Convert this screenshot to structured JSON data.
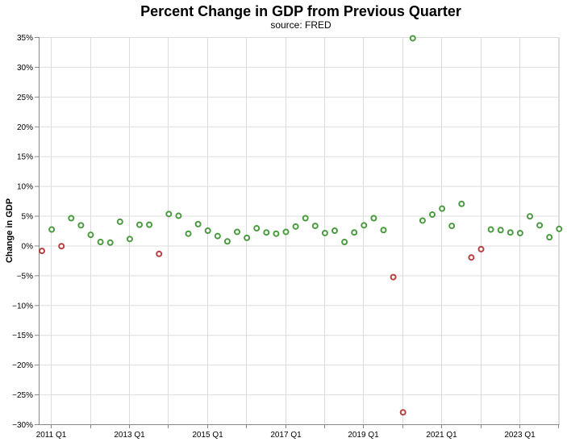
{
  "chart_data": {
    "type": "scatter",
    "title": "Percent Change in GDP from Previous Quarter",
    "subtitle": "source: FRED",
    "xlabel": "",
    "ylabel": "Change in GDP",
    "ylim": [
      -30,
      35
    ],
    "y_ticks": [
      35,
      30,
      25,
      20,
      15,
      10,
      5,
      0,
      -5,
      -10,
      -15,
      -20,
      -25,
      -30
    ],
    "y_tick_labels": [
      "35%",
      "30%",
      "25%",
      "20%",
      "15%",
      "10%",
      "5%",
      "0%",
      "−5%",
      "−10%",
      "−15%",
      "−20%",
      "−25%",
      "−30%"
    ],
    "x_tick_labels": [
      "2011 Q1",
      "2013 Q1",
      "2015 Q1",
      "2017 Q1",
      "2019 Q1",
      "2021 Q1",
      "2023 Q1"
    ],
    "positive_color": "#4a9a3f",
    "negative_color": "#b5403d",
    "points": [
      {
        "x": "2010 Q4",
        "y": -0.9
      },
      {
        "x": "2011 Q1",
        "y": 2.7
      },
      {
        "x": "2011 Q2",
        "y": -0.1
      },
      {
        "x": "2011 Q3",
        "y": 4.6
      },
      {
        "x": "2011 Q4",
        "y": 3.4
      },
      {
        "x": "2012 Q1",
        "y": 1.8
      },
      {
        "x": "2012 Q2",
        "y": 0.6
      },
      {
        "x": "2012 Q3",
        "y": 0.5
      },
      {
        "x": "2012 Q4",
        "y": 4.0
      },
      {
        "x": "2013 Q1",
        "y": 1.1
      },
      {
        "x": "2013 Q2",
        "y": 3.5
      },
      {
        "x": "2013 Q3",
        "y": 3.5
      },
      {
        "x": "2013 Q4",
        "y": -1.4
      },
      {
        "x": "2014 Q1",
        "y": 5.3
      },
      {
        "x": "2014 Q2",
        "y": 5.0
      },
      {
        "x": "2014 Q3",
        "y": 2.0
      },
      {
        "x": "2014 Q4",
        "y": 3.6
      },
      {
        "x": "2015 Q1",
        "y": 2.5
      },
      {
        "x": "2015 Q2",
        "y": 1.6
      },
      {
        "x": "2015 Q3",
        "y": 0.7
      },
      {
        "x": "2015 Q4",
        "y": 2.3
      },
      {
        "x": "2016 Q1",
        "y": 1.3
      },
      {
        "x": "2016 Q2",
        "y": 2.9
      },
      {
        "x": "2016 Q3",
        "y": 2.2
      },
      {
        "x": "2016 Q4",
        "y": 2.0
      },
      {
        "x": "2017 Q1",
        "y": 2.3
      },
      {
        "x": "2017 Q2",
        "y": 3.2
      },
      {
        "x": "2017 Q3",
        "y": 4.6
      },
      {
        "x": "2017 Q4",
        "y": 3.3
      },
      {
        "x": "2018 Q1",
        "y": 2.1
      },
      {
        "x": "2018 Q2",
        "y": 2.5
      },
      {
        "x": "2018 Q3",
        "y": 0.6
      },
      {
        "x": "2018 Q4",
        "y": 2.2
      },
      {
        "x": "2019 Q1",
        "y": 3.4
      },
      {
        "x": "2019 Q2",
        "y": 4.6
      },
      {
        "x": "2019 Q3",
        "y": 2.6
      },
      {
        "x": "2019 Q4",
        "y": -5.3
      },
      {
        "x": "2020 Q1",
        "y": -28.0
      },
      {
        "x": "2020 Q2",
        "y": 34.8
      },
      {
        "x": "2020 Q3",
        "y": 4.2
      },
      {
        "x": "2020 Q4",
        "y": 5.2
      },
      {
        "x": "2021 Q1",
        "y": 6.2
      },
      {
        "x": "2021 Q2",
        "y": 3.3
      },
      {
        "x": "2021 Q3",
        "y": 7.0
      },
      {
        "x": "2021 Q4",
        "y": -2.0
      },
      {
        "x": "2022 Q1",
        "y": -0.6
      },
      {
        "x": "2022 Q2",
        "y": 2.7
      },
      {
        "x": "2022 Q3",
        "y": 2.6
      },
      {
        "x": "2022 Q4",
        "y": 2.2
      },
      {
        "x": "2023 Q1",
        "y": 2.1
      },
      {
        "x": "2023 Q2",
        "y": 4.9
      },
      {
        "x": "2023 Q3",
        "y": 3.4
      },
      {
        "x": "2023 Q4",
        "y": 1.4
      },
      {
        "x": "2024 Q1",
        "y": 2.8
      }
    ]
  }
}
